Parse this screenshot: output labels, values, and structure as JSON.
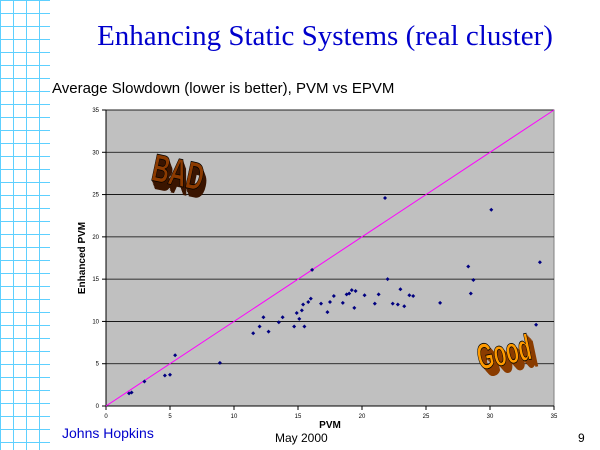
{
  "slide": {
    "title": "Enhancing Static Systems (real cluster)",
    "subtitle": "Average Slowdown (lower is better), PVM vs EPVM",
    "footer_left": "Johns Hopkins",
    "footer_center": "May 2000",
    "page_number": "9"
  },
  "colors": {
    "title": "#0000cc",
    "plot_bg": "#c0c0c0",
    "points": "#000080",
    "diagonal": "#ff00ff",
    "bad_front": "#8b3a00",
    "good_front": "#ff9a00"
  },
  "chart_data": {
    "type": "scatter",
    "xlabel": "PVM",
    "ylabel": "Enhanced PVM",
    "xlim": [
      0,
      35
    ],
    "ylim": [
      0,
      35
    ],
    "xticks": [
      0,
      5,
      10,
      15,
      20,
      25,
      30,
      35
    ],
    "yticks": [
      0,
      5,
      10,
      15,
      20,
      25,
      30,
      35
    ],
    "grid": "horizontal",
    "annotations": [
      {
        "text": "BAD",
        "region": "upper-left"
      },
      {
        "text": "Good",
        "region": "lower-right"
      }
    ],
    "reference_line": {
      "from": [
        0,
        0
      ],
      "to": [
        35,
        35
      ]
    },
    "points": [
      [
        1.8,
        1.5
      ],
      [
        2.0,
        1.6
      ],
      [
        3.0,
        2.9
      ],
      [
        4.6,
        3.6
      ],
      [
        5.0,
        3.7
      ],
      [
        5.4,
        6.0
      ],
      [
        8.9,
        5.1
      ],
      [
        11.5,
        8.6
      ],
      [
        12.0,
        9.4
      ],
      [
        12.3,
        10.5
      ],
      [
        12.7,
        8.8
      ],
      [
        13.5,
        9.9
      ],
      [
        13.8,
        10.5
      ],
      [
        14.7,
        9.4
      ],
      [
        14.9,
        11.0
      ],
      [
        15.1,
        10.3
      ],
      [
        15.3,
        11.3
      ],
      [
        15.4,
        12.0
      ],
      [
        15.5,
        9.4
      ],
      [
        15.8,
        12.3
      ],
      [
        16.0,
        12.7
      ],
      [
        16.1,
        16.1
      ],
      [
        16.8,
        12.1
      ],
      [
        17.3,
        11.1
      ],
      [
        17.5,
        12.3
      ],
      [
        17.8,
        13.0
      ],
      [
        18.5,
        12.2
      ],
      [
        18.8,
        13.2
      ],
      [
        19.0,
        13.3
      ],
      [
        19.2,
        13.7
      ],
      [
        19.4,
        11.6
      ],
      [
        19.5,
        13.6
      ],
      [
        20.2,
        13.1
      ],
      [
        21.0,
        12.1
      ],
      [
        21.3,
        13.2
      ],
      [
        21.8,
        24.6
      ],
      [
        22.0,
        15.0
      ],
      [
        22.4,
        12.1
      ],
      [
        22.8,
        12.0
      ],
      [
        23.0,
        13.8
      ],
      [
        23.3,
        11.8
      ],
      [
        23.7,
        13.1
      ],
      [
        24.0,
        13.0
      ],
      [
        26.1,
        12.2
      ],
      [
        28.3,
        16.5
      ],
      [
        28.5,
        13.3
      ],
      [
        28.7,
        14.9
      ],
      [
        30.1,
        23.2
      ],
      [
        33.6,
        9.6
      ],
      [
        33.9,
        17.0
      ]
    ]
  }
}
